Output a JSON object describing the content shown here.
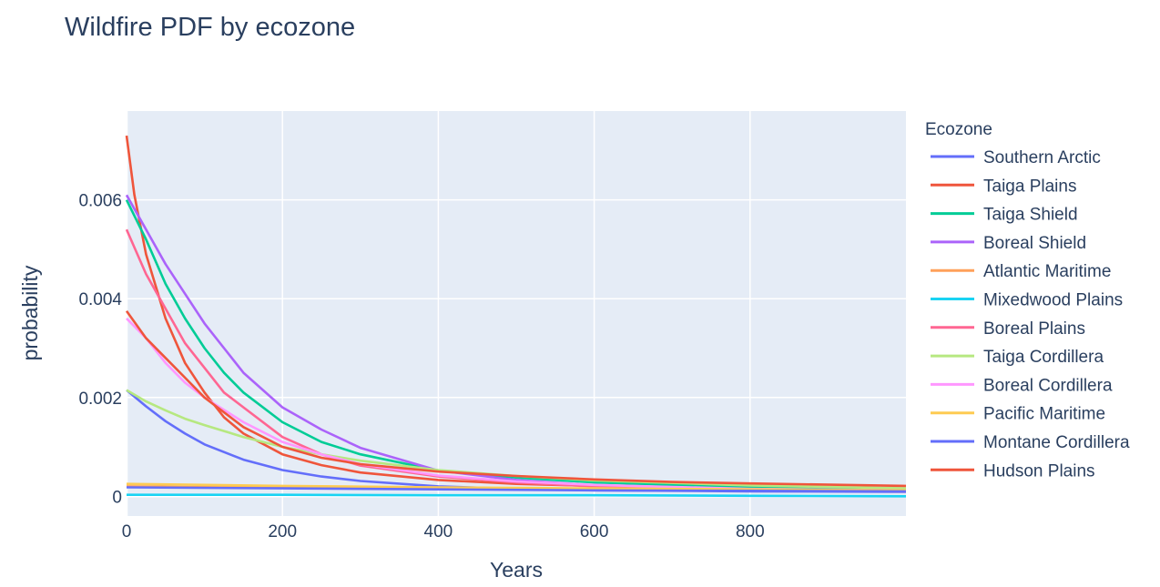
{
  "chart_data": {
    "type": "line",
    "title": "Wildfire PDF by ecozone",
    "xlabel": "Years",
    "ylabel": "probability",
    "xlim": [
      0,
      1000
    ],
    "ylim": [
      -0.0004,
      0.0078
    ],
    "xticks": [
      0,
      200,
      400,
      600,
      800
    ],
    "xtick_labels": [
      "0",
      "200",
      "400",
      "600",
      "800"
    ],
    "yticks": [
      0,
      0.002,
      0.004,
      0.006
    ],
    "ytick_labels": [
      "0",
      "0.002",
      "0.004",
      "0.006"
    ],
    "grid": true,
    "plot_background": "#e5ecf6",
    "legend": {
      "title": "Ecozone",
      "position": "right"
    },
    "series": [
      {
        "name": "Southern Arctic",
        "color": "#636efa",
        "x": [
          0,
          25,
          50,
          75,
          100,
          150,
          200,
          250,
          300,
          400,
          500,
          600,
          800,
          1000
        ],
        "y": [
          0.00215,
          0.00182,
          0.00152,
          0.00127,
          0.00105,
          0.00074,
          0.00053,
          0.0004,
          0.00031,
          0.0002,
          0.00015,
          0.00012,
          0.0001,
          9e-05
        ]
      },
      {
        "name": "Taiga Plains",
        "color": "#ef553b",
        "x": [
          0,
          10,
          25,
          50,
          75,
          100,
          125,
          150,
          200,
          250,
          300,
          400,
          500,
          600,
          800,
          1000
        ],
        "y": [
          0.0073,
          0.0061,
          0.0049,
          0.0036,
          0.0027,
          0.0021,
          0.0016,
          0.00127,
          0.00085,
          0.00063,
          0.00048,
          0.00033,
          0.00025,
          0.00021,
          0.00016,
          0.00014
        ]
      },
      {
        "name": "Taiga Shield",
        "color": "#00cc96",
        "x": [
          0,
          25,
          50,
          75,
          100,
          125,
          150,
          200,
          250,
          300,
          400,
          500,
          600,
          800,
          1000
        ],
        "y": [
          0.006,
          0.0052,
          0.0043,
          0.0036,
          0.003,
          0.0025,
          0.0021,
          0.0015,
          0.0011,
          0.00085,
          0.00052,
          0.00038,
          0.00028,
          0.00018,
          0.00014
        ]
      },
      {
        "name": "Boreal Shield",
        "color": "#ab63fa",
        "x": [
          0,
          25,
          50,
          75,
          100,
          125,
          150,
          200,
          250,
          300,
          400,
          500,
          600,
          800,
          1000
        ],
        "y": [
          0.0061,
          0.0054,
          0.0047,
          0.0041,
          0.0035,
          0.003,
          0.0025,
          0.0018,
          0.00135,
          0.00098,
          0.00052,
          0.00033,
          0.00022,
          0.00014,
          0.00012
        ]
      },
      {
        "name": "Atlantic Maritime",
        "color": "#ffa15a",
        "x": [
          0,
          200,
          400,
          600,
          800,
          1000
        ],
        "y": [
          0.0002,
          0.00017,
          0.00015,
          0.00013,
          0.00012,
          0.00011
        ]
      },
      {
        "name": "Mixedwood Plains",
        "color": "#19d3f3",
        "x": [
          0,
          200,
          400,
          600,
          800,
          1000
        ],
        "y": [
          3e-05,
          3e-05,
          2e-05,
          2e-05,
          1e-05,
          0.0
        ]
      },
      {
        "name": "Boreal Plains",
        "color": "#ff6692",
        "x": [
          0,
          25,
          50,
          75,
          100,
          125,
          150,
          200,
          250,
          300,
          400,
          500,
          600,
          800,
          1000
        ],
        "y": [
          0.0054,
          0.0045,
          0.0038,
          0.0031,
          0.0026,
          0.0021,
          0.0018,
          0.0012,
          0.00085,
          0.00062,
          0.0004,
          0.00028,
          0.0002,
          0.00013,
          0.0001
        ]
      },
      {
        "name": "Taiga Cordillera",
        "color": "#b6e880",
        "x": [
          0,
          25,
          50,
          75,
          100,
          150,
          200,
          250,
          300,
          400,
          500,
          600,
          800,
          1000
        ],
        "y": [
          0.00215,
          0.00192,
          0.00174,
          0.00157,
          0.00144,
          0.0012,
          0.001,
          0.00085,
          0.00072,
          0.00053,
          0.00041,
          0.00032,
          0.00022,
          0.00016
        ]
      },
      {
        "name": "Boreal Cordillera",
        "color": "#ff97ff",
        "x": [
          0,
          25,
          50,
          75,
          100,
          150,
          200,
          250,
          300,
          400,
          500,
          600,
          800,
          1000
        ],
        "y": [
          0.0036,
          0.0032,
          0.0027,
          0.0023,
          0.002,
          0.0015,
          0.0011,
          0.00085,
          0.00065,
          0.00042,
          0.0003,
          0.00023,
          0.00015,
          0.00012
        ]
      },
      {
        "name": "Pacific Maritime",
        "color": "#fecb52",
        "x": [
          0,
          200,
          400,
          600,
          800,
          1000
        ],
        "y": [
          0.00025,
          0.00021,
          0.00018,
          0.00016,
          0.00014,
          0.00012
        ]
      },
      {
        "name": "Montane Cordillera",
        "color": "#636efa",
        "x": [
          0,
          200,
          400,
          600,
          800,
          1000
        ],
        "y": [
          0.00018,
          0.00016,
          0.00014,
          0.00012,
          0.00011,
          0.0001
        ]
      },
      {
        "name": "Hudson Plains",
        "color": "#ef553b",
        "x": [
          0,
          25,
          50,
          75,
          100,
          150,
          200,
          250,
          300,
          400,
          500,
          600,
          700,
          800,
          1000
        ],
        "y": [
          0.00375,
          0.0032,
          0.0028,
          0.0024,
          0.002,
          0.0014,
          0.001,
          0.00078,
          0.00065,
          0.0005,
          0.00041,
          0.00034,
          0.00029,
          0.00026,
          0.00021
        ]
      }
    ]
  }
}
